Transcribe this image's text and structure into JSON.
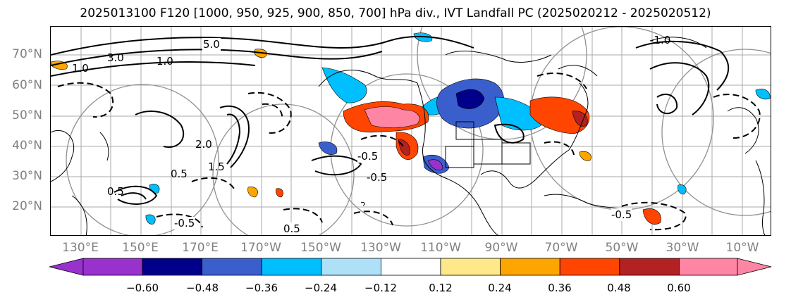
{
  "title": "2025013100 F120 [1000, 950, 925, 900, 850, 700] hPa div., IVT Landfall PC (2025020212 - 2025020512)",
  "lat_labels": [
    "70°N",
    "60°N",
    "50°N",
    "40°N",
    "30°N",
    "20°N"
  ],
  "lon_labels": [
    "130°E",
    "150°E",
    "170°E",
    "170°W",
    "150°W",
    "130°W",
    "110°W",
    "90°W",
    "70°W",
    "50°W",
    "30°W",
    "10°W"
  ],
  "contour_labels": [
    "5.0",
    "1.0",
    "-0.5",
    "0.5",
    "1.5",
    "2.0",
    "-1.0",
    "3.0",
    "0.5",
    "-0.5",
    "-0.5",
    "0.5",
    "-0.5",
    "1.0"
  ],
  "colorbar": {
    "tick_labels": [
      "−0.60",
      "−0.48",
      "−0.36",
      "−0.24",
      "−0.12",
      "0.12",
      "0.24",
      "0.36",
      "0.48",
      "0.60"
    ],
    "colors": [
      "#9932cc",
      "#00008b",
      "#3a5fcd",
      "#00bfff",
      "#aee0f8",
      "#ffffff",
      "#ffe88a",
      "#ffa500",
      "#ff4500",
      "#b22222",
      "#ff85a5"
    ]
  },
  "colors": {
    "contour": "#000000",
    "grid": "#a8a8a8",
    "axis_label": "#808080",
    "circle": "#909090"
  }
}
